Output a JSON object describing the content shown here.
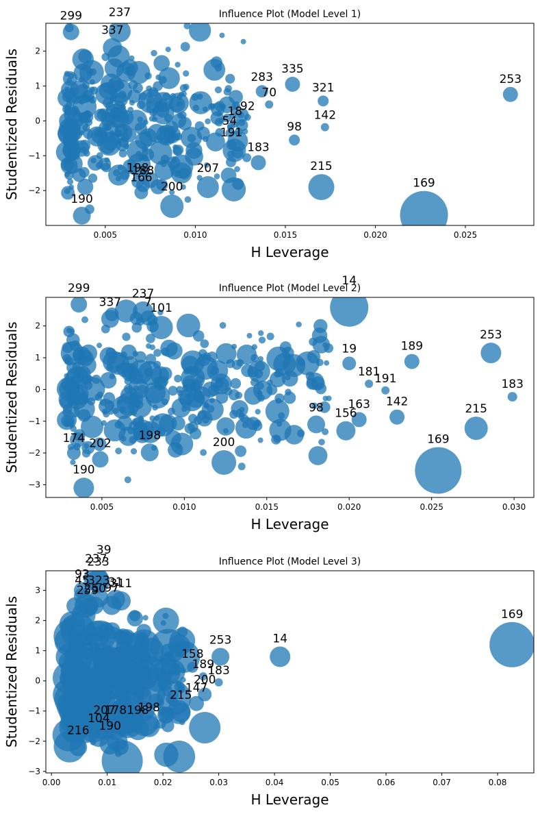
{
  "chart_data": [
    {
      "type": "scatter",
      "title": "Influence Plot (Model Level 1)",
      "xlabel": "H Leverage",
      "ylabel": "Studentized Residuals",
      "xlim": [
        0.0017,
        0.0288
      ],
      "ylim": [
        -3.0,
        2.8
      ],
      "xticks": [
        0.005,
        0.01,
        0.015,
        0.02,
        0.025
      ],
      "xtick_labels": [
        "0.005",
        "0.010",
        "0.015",
        "0.020",
        "0.025"
      ],
      "yticks": [
        -2,
        -1,
        0,
        1,
        2
      ],
      "ytick_labels": [
        "−2",
        "−1",
        "0",
        "1",
        "2"
      ],
      "grid": false,
      "marker_color": "#1f77b4",
      "labeled_points": [
        {
          "label": "299",
          "x": 0.0031,
          "y": 2.55,
          "size": 12
        },
        {
          "label": "237",
          "x": 0.0058,
          "y": 2.57,
          "size": 16
        },
        {
          "label": "337",
          "x": 0.0054,
          "y": 2.1,
          "size": 14
        },
        {
          "label": "283",
          "x": 0.0137,
          "y": 0.85,
          "size": 9
        },
        {
          "label": "335",
          "x": 0.0154,
          "y": 1.05,
          "size": 11
        },
        {
          "label": "70",
          "x": 0.0141,
          "y": 0.47,
          "size": 6
        },
        {
          "label": "321",
          "x": 0.0171,
          "y": 0.57,
          "size": 8
        },
        {
          "label": "253",
          "x": 0.0275,
          "y": 0.76,
          "size": 11
        },
        {
          "label": "18",
          "x": 0.0122,
          "y": -0.07,
          "size": 6
        },
        {
          "label": "92",
          "x": 0.0129,
          "y": 0.1,
          "size": 5
        },
        {
          "label": "142",
          "x": 0.0172,
          "y": -0.18,
          "size": 6
        },
        {
          "label": "98",
          "x": 0.0155,
          "y": -0.55,
          "size": 8
        },
        {
          "label": "54",
          "x": 0.0119,
          "y": -0.35,
          "size": 6
        },
        {
          "label": "191",
          "x": 0.012,
          "y": -0.7,
          "size": 7
        },
        {
          "label": "183",
          "x": 0.0135,
          "y": -1.2,
          "size": 11
        },
        {
          "label": "215",
          "x": 0.017,
          "y": -1.9,
          "size": 19
        },
        {
          "label": "169",
          "x": 0.0227,
          "y": -2.7,
          "size": 35
        },
        {
          "label": "198",
          "x": 0.0068,
          "y": -1.75,
          "size": 9
        },
        {
          "label": "188",
          "x": 0.0071,
          "y": -1.85,
          "size": 10
        },
        {
          "label": "166",
          "x": 0.007,
          "y": -2.05,
          "size": 10
        },
        {
          "label": "200",
          "x": 0.0087,
          "y": -2.45,
          "size": 17
        },
        {
          "label": "207",
          "x": 0.0107,
          "y": -1.9,
          "size": 16
        },
        {
          "label": "190",
          "x": 0.0037,
          "y": -2.72,
          "size": 13
        }
      ]
    },
    {
      "type": "scatter",
      "title": "Influence Plot (Model Level 2)",
      "xlabel": "H Leverage",
      "ylabel": "Studentized Residuals",
      "xlim": [
        0.0016,
        0.0312
      ],
      "ylim": [
        -3.4,
        2.9
      ],
      "xticks": [
        0.005,
        0.01,
        0.015,
        0.02,
        0.025,
        0.03
      ],
      "xtick_labels": [
        "0.005",
        "0.010",
        "0.015",
        "0.020",
        "0.025",
        "0.030"
      ],
      "yticks": [
        -3,
        -2,
        -1,
        0,
        1,
        2
      ],
      "ytick_labels": [
        "−3",
        "−2",
        "−1",
        "0",
        "1",
        "2"
      ],
      "grid": false,
      "marker_color": "#1f77b4",
      "labeled_points": [
        {
          "label": "299",
          "x": 0.0036,
          "y": 2.68,
          "size": 12
        },
        {
          "label": "337",
          "x": 0.0055,
          "y": 2.22,
          "size": 13
        },
        {
          "label": "237",
          "x": 0.0075,
          "y": 2.45,
          "size": 15
        },
        {
          "label": "7",
          "x": 0.0078,
          "y": 2.25,
          "size": 11
        },
        {
          "label": "101",
          "x": 0.0086,
          "y": 1.95,
          "size": 17
        },
        {
          "label": "14",
          "x": 0.02,
          "y": 2.58,
          "size": 28
        },
        {
          "label": "19",
          "x": 0.02,
          "y": 0.82,
          "size": 10
        },
        {
          "label": "189",
          "x": 0.0238,
          "y": 0.88,
          "size": 11
        },
        {
          "label": "253",
          "x": 0.0286,
          "y": 1.15,
          "size": 15
        },
        {
          "label": "181",
          "x": 0.0212,
          "y": 0.18,
          "size": 6
        },
        {
          "label": "191",
          "x": 0.0222,
          "y": -0.03,
          "size": 6
        },
        {
          "label": "183",
          "x": 0.0299,
          "y": -0.23,
          "size": 7
        },
        {
          "label": "98",
          "x": 0.018,
          "y": -1.1,
          "size": 13
        },
        {
          "label": "163",
          "x": 0.0206,
          "y": -0.95,
          "size": 11
        },
        {
          "label": "156",
          "x": 0.0198,
          "y": -1.3,
          "size": 14
        },
        {
          "label": "142",
          "x": 0.0229,
          "y": -0.87,
          "size": 11
        },
        {
          "label": "215",
          "x": 0.0277,
          "y": -1.22,
          "size": 17
        },
        {
          "label": "169",
          "x": 0.0254,
          "y": -2.55,
          "size": 34
        },
        {
          "label": "198",
          "x": 0.0079,
          "y": -1.98,
          "size": 13
        },
        {
          "label": "200",
          "x": 0.0124,
          "y": -2.3,
          "size": 18
        },
        {
          "label": "174",
          "x": 0.0033,
          "y": -2.0,
          "size": 10
        },
        {
          "label": "202",
          "x": 0.0049,
          "y": -2.2,
          "size": 12
        },
        {
          "label": "190",
          "x": 0.0039,
          "y": -3.1,
          "size": 15
        }
      ]
    },
    {
      "type": "scatter",
      "title": "Influence Plot (Model Level 3)",
      "xlabel": "H Leverage",
      "ylabel": "Studentized Residuals",
      "xlim": [
        -0.001,
        0.0865
      ],
      "ylim": [
        -3.05,
        3.65
      ],
      "xticks": [
        0.0,
        0.01,
        0.02,
        0.03,
        0.04,
        0.05,
        0.06,
        0.07,
        0.08
      ],
      "xtick_labels": [
        "0.00",
        "0.01",
        "0.02",
        "0.03",
        "0.04",
        "0.05",
        "0.06",
        "0.07",
        "0.08"
      ],
      "yticks": [
        -3,
        -2,
        -1,
        0,
        1,
        2,
        3
      ],
      "ytick_labels": [
        "−3",
        "−2",
        "−1",
        "0",
        "1",
        "2",
        "3"
      ],
      "grid": false,
      "marker_color": "#1f77b4",
      "labeled_points": [
        {
          "label": "39",
          "x": 0.0094,
          "y": 3.9,
          "size": 8
        },
        {
          "label": "237",
          "x": 0.008,
          "y": 3.38,
          "size": 18
        },
        {
          "label": "233",
          "x": 0.0084,
          "y": 3.3,
          "size": 17
        },
        {
          "label": "93",
          "x": 0.0055,
          "y": 3.0,
          "size": 12
        },
        {
          "label": "45",
          "x": 0.0055,
          "y": 2.8,
          "size": 12
        },
        {
          "label": "323",
          "x": 0.0085,
          "y": 2.75,
          "size": 14
        },
        {
          "label": "31",
          "x": 0.0115,
          "y": 2.7,
          "size": 14
        },
        {
          "label": "311",
          "x": 0.0125,
          "y": 2.65,
          "size": 14
        },
        {
          "label": "259",
          "x": 0.0065,
          "y": 2.45,
          "size": 13
        },
        {
          "label": "250",
          "x": 0.0078,
          "y": 2.5,
          "size": 13
        },
        {
          "label": "97",
          "x": 0.0108,
          "y": 2.5,
          "size": 14
        },
        {
          "label": "253",
          "x": 0.0303,
          "y": 0.8,
          "size": 13
        },
        {
          "label": "14",
          "x": 0.041,
          "y": 0.8,
          "size": 15
        },
        {
          "label": "169",
          "x": 0.0826,
          "y": 1.2,
          "size": 33
        },
        {
          "label": "158",
          "x": 0.0253,
          "y": 0.45,
          "size": 8
        },
        {
          "label": "189",
          "x": 0.0272,
          "y": 0.15,
          "size": 6
        },
        {
          "label": "183",
          "x": 0.03,
          "y": -0.05,
          "size": 6
        },
        {
          "label": "200",
          "x": 0.0275,
          "y": -0.45,
          "size": 10
        },
        {
          "label": "147",
          "x": 0.026,
          "y": -0.75,
          "size": 11
        },
        {
          "label": "215",
          "x": 0.0232,
          "y": -1.05,
          "size": 14
        },
        {
          "label": "207",
          "x": 0.0095,
          "y": -1.6,
          "size": 16
        },
        {
          "label": "178",
          "x": 0.0115,
          "y": -1.6,
          "size": 16
        },
        {
          "label": "198",
          "x": 0.0155,
          "y": -1.6,
          "size": 16
        },
        {
          "label": "198",
          "x": 0.0175,
          "y": -1.5,
          "size": 16
        },
        {
          "label": "104",
          "x": 0.0085,
          "y": -1.85,
          "size": 15
        },
        {
          "label": "216",
          "x": 0.0048,
          "y": -2.2,
          "size": 13
        },
        {
          "label": "190",
          "x": 0.0105,
          "y": -2.1,
          "size": 15
        },
        {
          "label": "",
          "x": 0.0127,
          "y": -2.65,
          "size": 30
        },
        {
          "label": "",
          "x": 0.0275,
          "y": -1.55,
          "size": 23
        }
      ]
    }
  ]
}
